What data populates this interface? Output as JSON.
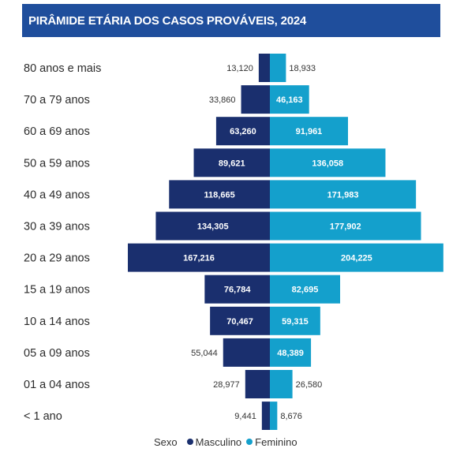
{
  "title": "PIRÂMIDE ETÁRIA DOS CASOS PROVÁVEIS, 2024",
  "legend": {
    "title": "Sexo",
    "items": [
      {
        "label": "Masculino",
        "color": "#1a2f6e"
      },
      {
        "label": "Feminino",
        "color": "#14a0cc"
      }
    ]
  },
  "chart_data": {
    "type": "bar",
    "orientation": "horizontal-population-pyramid",
    "title": "PIRÂMIDE ETÁRIA DOS CASOS PROVÁVEIS, 2024",
    "categories": [
      "80 anos e mais",
      "70 a 79 anos",
      "60 a 69 anos",
      "50 a 59 anos",
      "40 a 49 anos",
      "30 a 39 anos",
      "20 a 29 anos",
      "15 a 19 anos",
      "10 a 14 anos",
      "05 a 09 anos",
      "01 a 04 anos",
      "< 1 ano"
    ],
    "series": [
      {
        "name": "Masculino",
        "color": "#1a2f6e",
        "values": [
          13120,
          33860,
          63260,
          89621,
          118665,
          134305,
          167216,
          76784,
          70467,
          55044,
          28977,
          9441
        ],
        "labels": [
          "13,120",
          "33,860",
          "63,260",
          "89,621",
          "118,665",
          "134,305",
          "167,216",
          "76,784",
          "70,467",
          "55,044",
          "28,977",
          "9,441"
        ]
      },
      {
        "name": "Feminino",
        "color": "#14a0cc",
        "values": [
          18933,
          46163,
          91961,
          136058,
          171983,
          177902,
          204225,
          82695,
          59315,
          48389,
          26580,
          8676
        ],
        "labels": [
          "18,933",
          "46,163",
          "91,961",
          "136,058",
          "171,983",
          "177,902",
          "204,225",
          "82,695",
          "59,315",
          "48,389",
          "26,580",
          "8,676"
        ]
      }
    ],
    "legend_position": "bottom-center",
    "grid": false
  }
}
